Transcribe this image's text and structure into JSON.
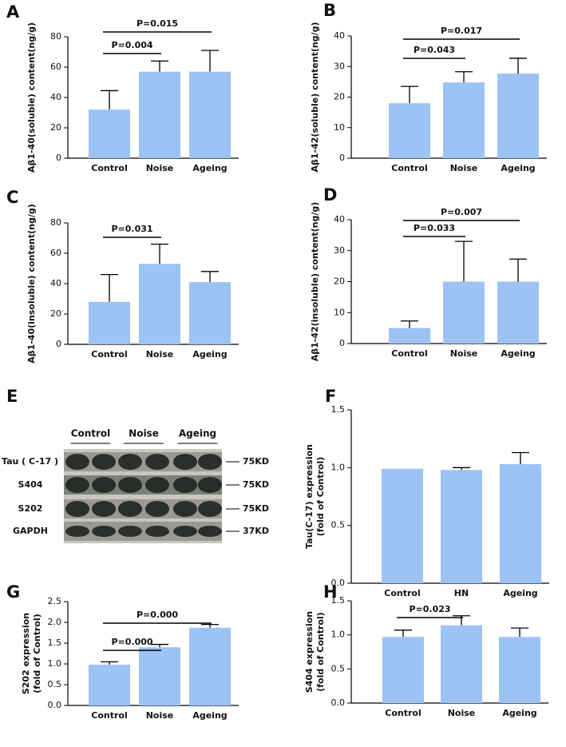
{
  "chart_data": [
    {
      "type": "bar",
      "panel": "A",
      "ylabel": "Aβ1-40(soluble) content(ng/g)",
      "categories": [
        "Control",
        "Noise",
        "Ageing"
      ],
      "values": [
        32,
        57,
        57
      ],
      "errors": [
        12.5,
        7,
        14
      ],
      "color": "#9cc3f3",
      "ylim": [
        0,
        80
      ],
      "yticks": [
        0,
        20,
        40,
        60,
        80
      ],
      "annotations": [
        {
          "label": "P=0.004",
          "between": [
            0,
            1
          ]
        },
        {
          "label": "P=0.015",
          "between": [
            0,
            2
          ]
        }
      ]
    },
    {
      "type": "bar",
      "panel": "B",
      "ylabel": "Aβ1-42(soluble) content(ng/g)",
      "categories": [
        "Control",
        "Noise",
        "Ageing"
      ],
      "values": [
        18,
        24.8,
        27.7
      ],
      "errors": [
        5.5,
        3.5,
        5
      ],
      "color": "#9cc3f3",
      "ylim": [
        0,
        40
      ],
      "yticks": [
        0,
        10,
        20,
        30,
        40
      ],
      "annotations": [
        {
          "label": "P=0.043",
          "between": [
            0,
            1
          ]
        },
        {
          "label": "P=0.017",
          "between": [
            0,
            2
          ]
        }
      ]
    },
    {
      "type": "bar",
      "panel": "C",
      "ylabel": "Aβ1-40(insoluble) content(ng/g)",
      "categories": [
        "Control",
        "Noise",
        "Ageing"
      ],
      "values": [
        28,
        53,
        41
      ],
      "errors": [
        18,
        13,
        7
      ],
      "color": "#9cc3f3",
      "ylim": [
        0,
        80
      ],
      "yticks": [
        0,
        20,
        40,
        60,
        80
      ],
      "annotations": [
        {
          "label": "P=0.031",
          "between": [
            0,
            1
          ]
        }
      ]
    },
    {
      "type": "bar",
      "panel": "D",
      "ylabel": "Aβ1-42(insoluble) content(ng/g)",
      "categories": [
        "Control",
        "Noise",
        "Ageing"
      ],
      "values": [
        5,
        20,
        20
      ],
      "errors": [
        2.3,
        13,
        7.3
      ],
      "color": "#9cc3f3",
      "ylim": [
        0,
        40
      ],
      "yticks": [
        0,
        10,
        20,
        30,
        40
      ],
      "annotations": [
        {
          "label": "P=0.033",
          "between": [
            0,
            1
          ]
        },
        {
          "label": "P=0.007",
          "between": [
            0,
            2
          ]
        }
      ]
    },
    {
      "type": "bar",
      "panel": "F",
      "ylabel": [
        "Tau(C-17) expression",
        "(fold of Control)"
      ],
      "categories": [
        "Control",
        "HN",
        "Ageing"
      ],
      "values": [
        0.99,
        0.98,
        1.03
      ],
      "errors": [
        null,
        0.02,
        0.1
      ],
      "color": "#9cc3f3",
      "ylim": [
        0,
        1.5
      ],
      "yticks": [
        {
          "value": 0,
          "label": "0.0"
        },
        0.5,
        {
          "value": 1,
          "label": "1.0"
        },
        1.5
      ],
      "annotations": []
    },
    {
      "type": "bar",
      "panel": "G",
      "ylabel": [
        "S202 expression",
        "(fold of Control)"
      ],
      "categories": [
        "Control",
        "Noise",
        "Ageing"
      ],
      "values": [
        0.98,
        1.4,
        1.87
      ],
      "errors": [
        0.07,
        0.07,
        0.08
      ],
      "color": "#9cc3f3",
      "ylim": [
        0,
        2.5
      ],
      "yticks": [
        {
          "value": 0,
          "label": "0.0"
        },
        0.5,
        {
          "value": 1,
          "label": "1.0"
        },
        1.5,
        {
          "value": 2,
          "label": "2.0"
        },
        2.5
      ],
      "annotations": [
        {
          "label": "P=0.000",
          "between": [
            0,
            1
          ]
        },
        {
          "label": "P=0.000",
          "between": [
            0,
            2
          ]
        }
      ]
    },
    {
      "type": "bar",
      "panel": "H",
      "ylabel": [
        "S404 expression",
        "(fold of Control)"
      ],
      "categories": [
        "Control",
        "Noise",
        "Ageing"
      ],
      "values": [
        0.97,
        1.14,
        0.97
      ],
      "errors": [
        0.1,
        0.14,
        0.13
      ],
      "color": "#9cc3f3",
      "ylim": [
        0,
        1.5
      ],
      "yticks": [
        {
          "value": 0,
          "label": "0.0"
        },
        0.5,
        {
          "value": 1,
          "label": "1.0"
        },
        1.5
      ],
      "annotations": [
        {
          "label": "P=0.023",
          "between": [
            0,
            1
          ]
        }
      ]
    }
  ],
  "blot": {
    "panel": "E",
    "groups": [
      "Control",
      "Noise",
      "Ageing"
    ],
    "rows": [
      "Tau ( C-17 )",
      "S404",
      "S202",
      "GAPDH"
    ],
    "sizes": [
      "75KD",
      "75KD",
      "75KD",
      "37KD"
    ]
  }
}
